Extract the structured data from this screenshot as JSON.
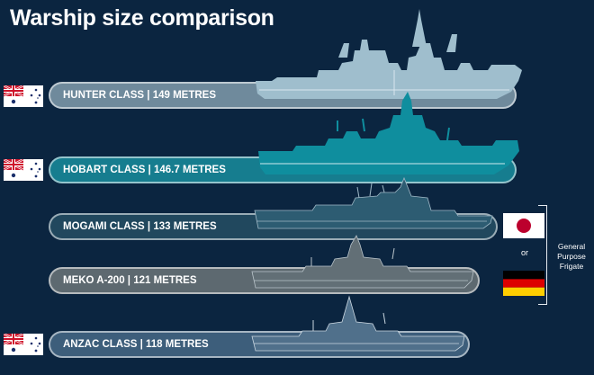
{
  "title": "Warship size comparison",
  "side_label": {
    "or": "or",
    "general_purpose": "General Purpose Frigate"
  },
  "ships": [
    {
      "label": "HUNTER CLASS | 149 METRES",
      "length_m": 149,
      "flag": "australia-flag",
      "color": "#9bbccc"
    },
    {
      "label": "HOBART CLASS | 146.7 METRES",
      "length_m": 146.7,
      "flag": "australia-flag",
      "color": "#0f8e9e"
    },
    {
      "label": "MOGAMI CLASS | 133 METRES",
      "length_m": 133,
      "flag": "japan-flag",
      "color": "#2d5c72"
    },
    {
      "label": "MEKO A-200 | 121 METRES",
      "length_m": 121,
      "flag": "germany-flag",
      "color": "#626f76"
    },
    {
      "label": "ANZAC CLASS | 118 METRES",
      "length_m": 118,
      "flag": "australia-flag",
      "color": "#50708b"
    }
  ]
}
